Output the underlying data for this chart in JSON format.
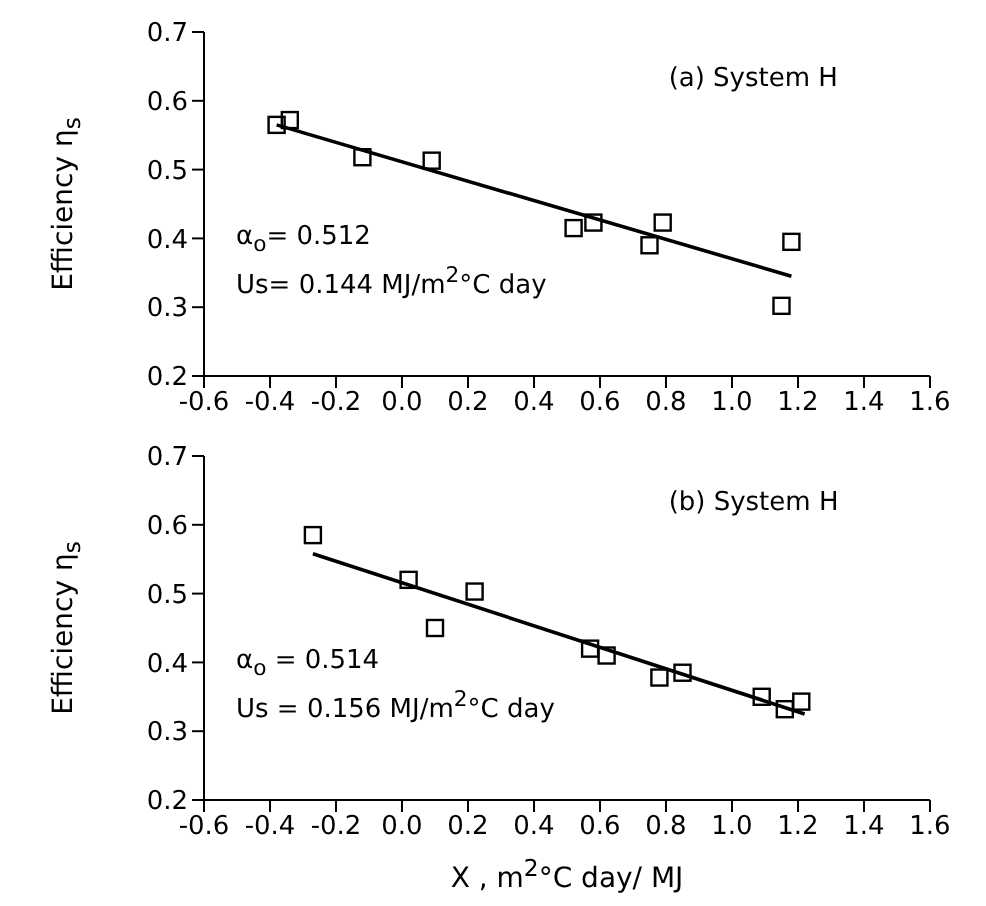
{
  "chart_data": [
    {
      "type": "scatter",
      "ylabel": "Efficiency η$_{s}$",
      "xlim": [
        -0.6,
        1.6
      ],
      "xticks": [
        {
          "value": -0.6,
          "label": "-0.6"
        },
        {
          "value": -0.4,
          "label": "-0.4"
        },
        {
          "value": -0.2,
          "label": "-0.2"
        },
        {
          "value": 0,
          "label": "0.0"
        },
        0.2,
        0.4,
        0.6,
        0.8,
        {
          "value": 1,
          "label": "1.0"
        },
        1.2,
        1.4,
        1.6
      ],
      "ylim": [
        0.2,
        0.7
      ],
      "yticks": [
        0.2,
        0.3,
        0.4,
        0.5,
        0.6,
        0.7
      ],
      "grid": false,
      "annotations": [
        "(a) System   H",
        "α$_{o}$= 0.512",
        "Us= 0.144  MJ/m$^{2}$°C day"
      ],
      "series": [
        {
          "color": "#000000",
          "marker": "square",
          "x": [
            -0.38,
            -0.34,
            -0.12,
            0.09,
            0.52,
            0.58,
            0.75,
            0.79,
            1.15,
            1.18
          ],
          "values": [
            0.565,
            0.572,
            0.518,
            0.513,
            0.415,
            0.423,
            0.39,
            0.423,
            0.302,
            0.395
          ]
        },
        {
          "type": "line",
          "marker": "none",
          "color": "#000000",
          "x": [
            -0.38,
            1.18
          ],
          "values": [
            0.565,
            0.345
          ]
        }
      ]
    },
    {
      "type": "scatter",
      "xlabel": "X , m$^{2}$°C day/ MJ",
      "ylabel": "Efficiency η$_{s}$",
      "xlim": [
        -0.6,
        1.6
      ],
      "xticks": [
        {
          "value": -0.6,
          "label": "-0.6"
        },
        {
          "value": -0.4,
          "label": "-0.4"
        },
        {
          "value": -0.2,
          "label": "-0.2"
        },
        {
          "value": 0,
          "label": "0.0"
        },
        0.2,
        0.4,
        0.6,
        0.8,
        {
          "value": 1,
          "label": "1.0"
        },
        1.2,
        1.4,
        1.6
      ],
      "ylim": [
        0.2,
        0.7
      ],
      "yticks": [
        0.2,
        0.3,
        0.4,
        0.5,
        0.6,
        0.7
      ],
      "grid": false,
      "annotations": [
        "(b) System   H",
        "α$_{o}$ = 0.514",
        "Us = 0.156  MJ/m$^{2}$°C day"
      ],
      "series": [
        {
          "color": "#000000",
          "marker": "square",
          "x": [
            -0.27,
            0.02,
            0.1,
            0.22,
            0.57,
            0.62,
            0.78,
            0.85,
            1.09,
            1.16,
            1.21
          ],
          "values": [
            0.585,
            0.52,
            0.45,
            0.503,
            0.42,
            0.41,
            0.378,
            0.385,
            0.35,
            0.332,
            0.343
          ]
        },
        {
          "type": "line",
          "marker": "none",
          "color": "#000000",
          "x": [
            -0.27,
            1.22
          ],
          "values": [
            0.558,
            0.325
          ]
        }
      ]
    }
  ]
}
